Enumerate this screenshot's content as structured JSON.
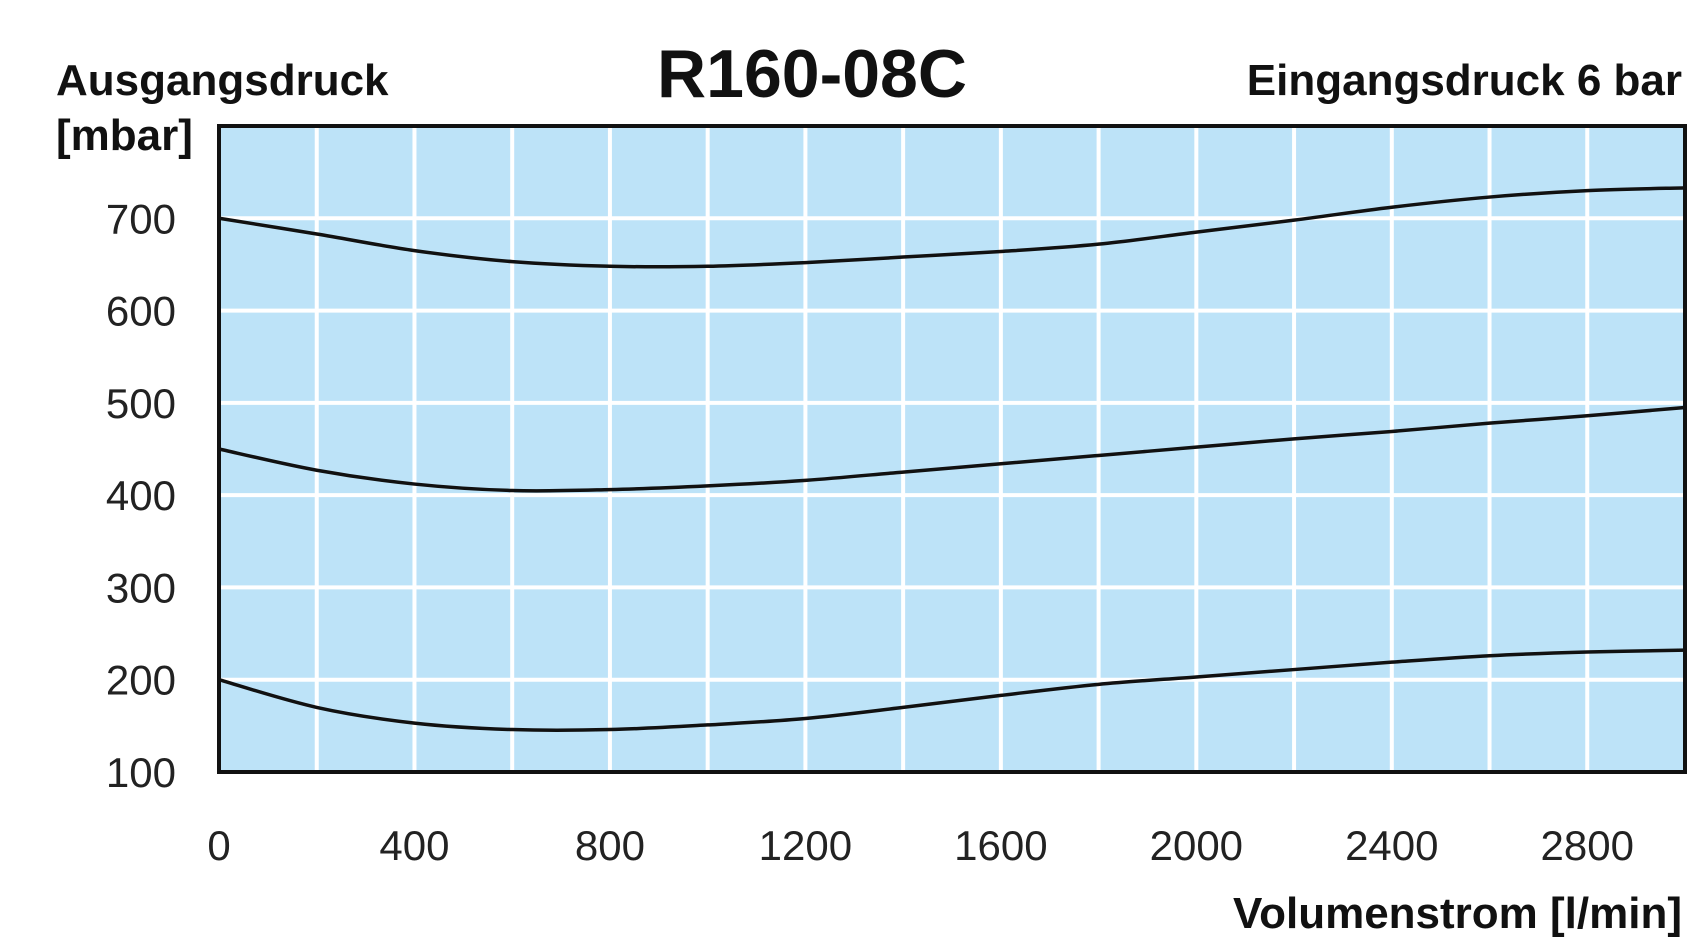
{
  "chart_data": {
    "type": "line",
    "title": "R160-08C",
    "subtitle": "Eingangsdruck 6 bar",
    "ylabel": "Ausgangsdruck",
    "yunit": "[mbar]",
    "xlabel": "Volumenstrom [l/min]",
    "xlim": [
      0,
      3000
    ],
    "ylim": [
      100,
      800
    ],
    "xticks": [
      0,
      400,
      800,
      1200,
      1600,
      2000,
      2400,
      2800
    ],
    "yticks": [
      100,
      200,
      300,
      400,
      500,
      600,
      700
    ],
    "x_grid_step": 200,
    "y_grid_step": 100,
    "grid": true,
    "plot_background": "#bde3f8",
    "grid_color": "#ffffff",
    "line_color": "#111111",
    "x": [
      0,
      200,
      400,
      600,
      800,
      1000,
      1200,
      1400,
      1600,
      1800,
      2000,
      2200,
      2400,
      2600,
      2800,
      3000
    ],
    "series": [
      {
        "values": [
          700,
          683,
          665,
          653,
          648,
          648,
          652,
          658,
          664,
          672,
          685,
          698,
          712,
          723,
          730,
          733
        ]
      },
      {
        "values": [
          450,
          427,
          412,
          405,
          406,
          410,
          416,
          425,
          434,
          443,
          452,
          461,
          469,
          478,
          486,
          495
        ]
      },
      {
        "values": [
          200,
          170,
          153,
          146,
          146,
          151,
          158,
          170,
          183,
          195,
          203,
          211,
          219,
          226,
          230,
          232
        ]
      }
    ]
  }
}
